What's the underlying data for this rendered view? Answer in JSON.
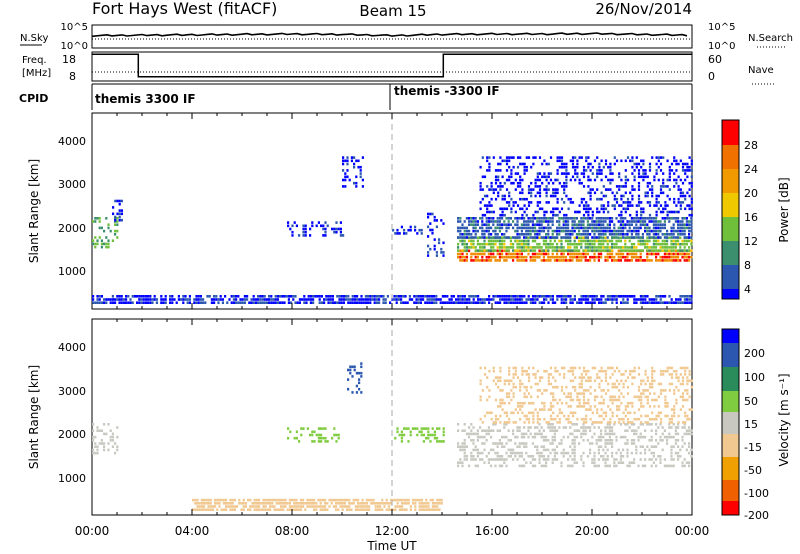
{
  "header": {
    "station": "Fort Hays West (fitACF)",
    "beam": "Beam 15",
    "date": "26/Nov/2014"
  },
  "panels": {
    "nsky": {
      "label": "N.Sky",
      "ytick_top": "10^5",
      "ytick_bottom": "10^0",
      "right_label": "N.Search",
      "right_tick_top": "10^5",
      "right_tick_bottom": "10^0"
    },
    "freq": {
      "label_line1": "Freq.",
      "label_line2": "[MHz]",
      "ytick_top": "18",
      "ytick_bottom": "8",
      "right_label": "Nave",
      "right_tick_top": "60",
      "right_tick_bottom": "0"
    },
    "cpid": {
      "label": "CPID",
      "segment1": "themis 3300 IF",
      "segment2": "themis -3300 IF"
    }
  },
  "xaxis": {
    "label": "Time UT",
    "ticks": [
      "00:00",
      "04:00",
      "08:00",
      "12:00",
      "16:00",
      "20:00",
      "00:00"
    ]
  },
  "power_panel": {
    "ylabel": "Slant Range [km]",
    "yticks": [
      "1000",
      "2000",
      "3000",
      "4000"
    ],
    "colorbar_label": "Power [dB]",
    "colorbar_ticks": [
      "4",
      "8",
      "12",
      "16",
      "20",
      "24",
      "28"
    ]
  },
  "velocity_panel": {
    "ylabel": "Slant Range [km]",
    "yticks": [
      "1000",
      "2000",
      "3000",
      "4000"
    ],
    "colorbar_label": "Velocity [m s⁻¹]",
    "colorbar_ticks": [
      "200",
      "100",
      "50",
      "15",
      "-15",
      "-50",
      "-100",
      "-200"
    ]
  },
  "chart_data": [
    {
      "type": "line",
      "title": "N.Sky / N.Search",
      "x_range_hours": [
        0,
        24
      ],
      "ylim_log10": [
        0,
        5
      ],
      "series": [
        {
          "name": "N.Sky",
          "x": [
            0,
            2,
            4,
            6,
            8,
            10,
            12,
            14,
            16,
            18,
            20,
            22,
            24
          ],
          "y_log10": [
            2.6,
            2.7,
            2.8,
            2.9,
            3.0,
            2.9,
            2.6,
            2.9,
            3.0,
            3.0,
            3.1,
            2.9,
            2.7
          ]
        },
        {
          "name": "N.Search",
          "x": [
            0,
            24
          ],
          "y_log10": [
            1.8,
            1.8
          ]
        }
      ]
    },
    {
      "type": "line",
      "title": "Freq. / Nave",
      "x_range_hours": [
        0,
        24
      ],
      "ylim": [
        8,
        18
      ],
      "series": [
        {
          "name": "Freq. [MHz]",
          "step": true,
          "x": [
            0,
            1.85,
            1.85,
            14.05,
            14.05,
            24
          ],
          "y": [
            17.2,
            17.2,
            9.5,
            9.5,
            17.2,
            17.2
          ]
        },
        {
          "name": "Nave",
          "x": [
            0,
            24
          ],
          "y": [
            8.8,
            8.8
          ]
        }
      ]
    },
    {
      "type": "heatmap",
      "title": "Power [dB]",
      "x_unit": "hours UT",
      "y_unit": "Slant Range [km]",
      "xlim": [
        0,
        24
      ],
      "ylim": [
        0,
        4500
      ],
      "colorbar": [
        4,
        8,
        12,
        16,
        20,
        24,
        28
      ],
      "colors": [
        "#0000ff",
        "#2b57b0",
        "#3c8f6e",
        "#6fbf3b",
        "#f0c800",
        "#f08a00",
        "#ff0000"
      ],
      "regions": [
        {
          "t0": 0.0,
          "t1": 1.0,
          "r0": 1400,
          "r1": 2100,
          "power": 14
        },
        {
          "t0": 0.8,
          "t1": 1.2,
          "r0": 2000,
          "r1": 2500,
          "power": 5
        },
        {
          "t0": 7.8,
          "t1": 10.0,
          "r0": 1700,
          "r1": 2000,
          "power": 5
        },
        {
          "t0": 10.0,
          "t1": 10.8,
          "r0": 2800,
          "r1": 3500,
          "power": 5
        },
        {
          "t0": 12.0,
          "t1": 13.4,
          "r0": 1700,
          "r1": 1900,
          "power": 6
        },
        {
          "t0": 13.4,
          "t1": 14.1,
          "r0": 1200,
          "r1": 2200,
          "power": 6
        },
        {
          "t0": 14.6,
          "t1": 24.0,
          "r0": 1100,
          "r1": 1350,
          "power": 25
        },
        {
          "t0": 14.6,
          "t1": 24.0,
          "r0": 1350,
          "r1": 1650,
          "power": 16
        },
        {
          "t0": 14.6,
          "t1": 24.0,
          "r0": 1650,
          "r1": 2100,
          "power": 8
        },
        {
          "t0": 15.5,
          "t1": 24.0,
          "r0": 2100,
          "r1": 3500,
          "power": 4
        },
        {
          "t0": 0.0,
          "t1": 24.0,
          "r0": 100,
          "r1": 300,
          "power": 5
        }
      ]
    },
    {
      "type": "heatmap",
      "title": "Velocity [m s⁻¹]",
      "x_unit": "hours UT",
      "y_unit": "Slant Range [km]",
      "xlim": [
        0,
        24
      ],
      "ylim": [
        0,
        4500
      ],
      "colorbar": [
        -200,
        -100,
        -50,
        -15,
        15,
        50,
        100,
        200
      ],
      "colors": [
        "#ff0000",
        "#f06000",
        "#f0a000",
        "#f0c890",
        "#c8c8c0",
        "#80cc40",
        "#2a8c5a",
        "#2b57b0",
        "#0000ff"
      ],
      "regions": [
        {
          "t0": 0.0,
          "t1": 1.0,
          "r0": 1400,
          "r1": 2100,
          "vel": 0
        },
        {
          "t0": 7.8,
          "t1": 10.0,
          "r0": 1700,
          "r1": 2000,
          "vel": 30
        },
        {
          "t0": 10.2,
          "t1": 10.8,
          "r0": 2800,
          "r1": 3500,
          "vel": 150
        },
        {
          "t0": 12.0,
          "t1": 14.1,
          "r0": 1700,
          "r1": 2000,
          "vel": 40
        },
        {
          "t0": 14.6,
          "t1": 24.0,
          "r0": 1100,
          "r1": 2100,
          "vel": 0
        },
        {
          "t0": 15.5,
          "t1": 24.0,
          "r0": 2100,
          "r1": 3400,
          "vel": -20
        },
        {
          "t0": 4.0,
          "t1": 14.0,
          "r0": 100,
          "r1": 350,
          "vel": -40
        }
      ]
    }
  ]
}
